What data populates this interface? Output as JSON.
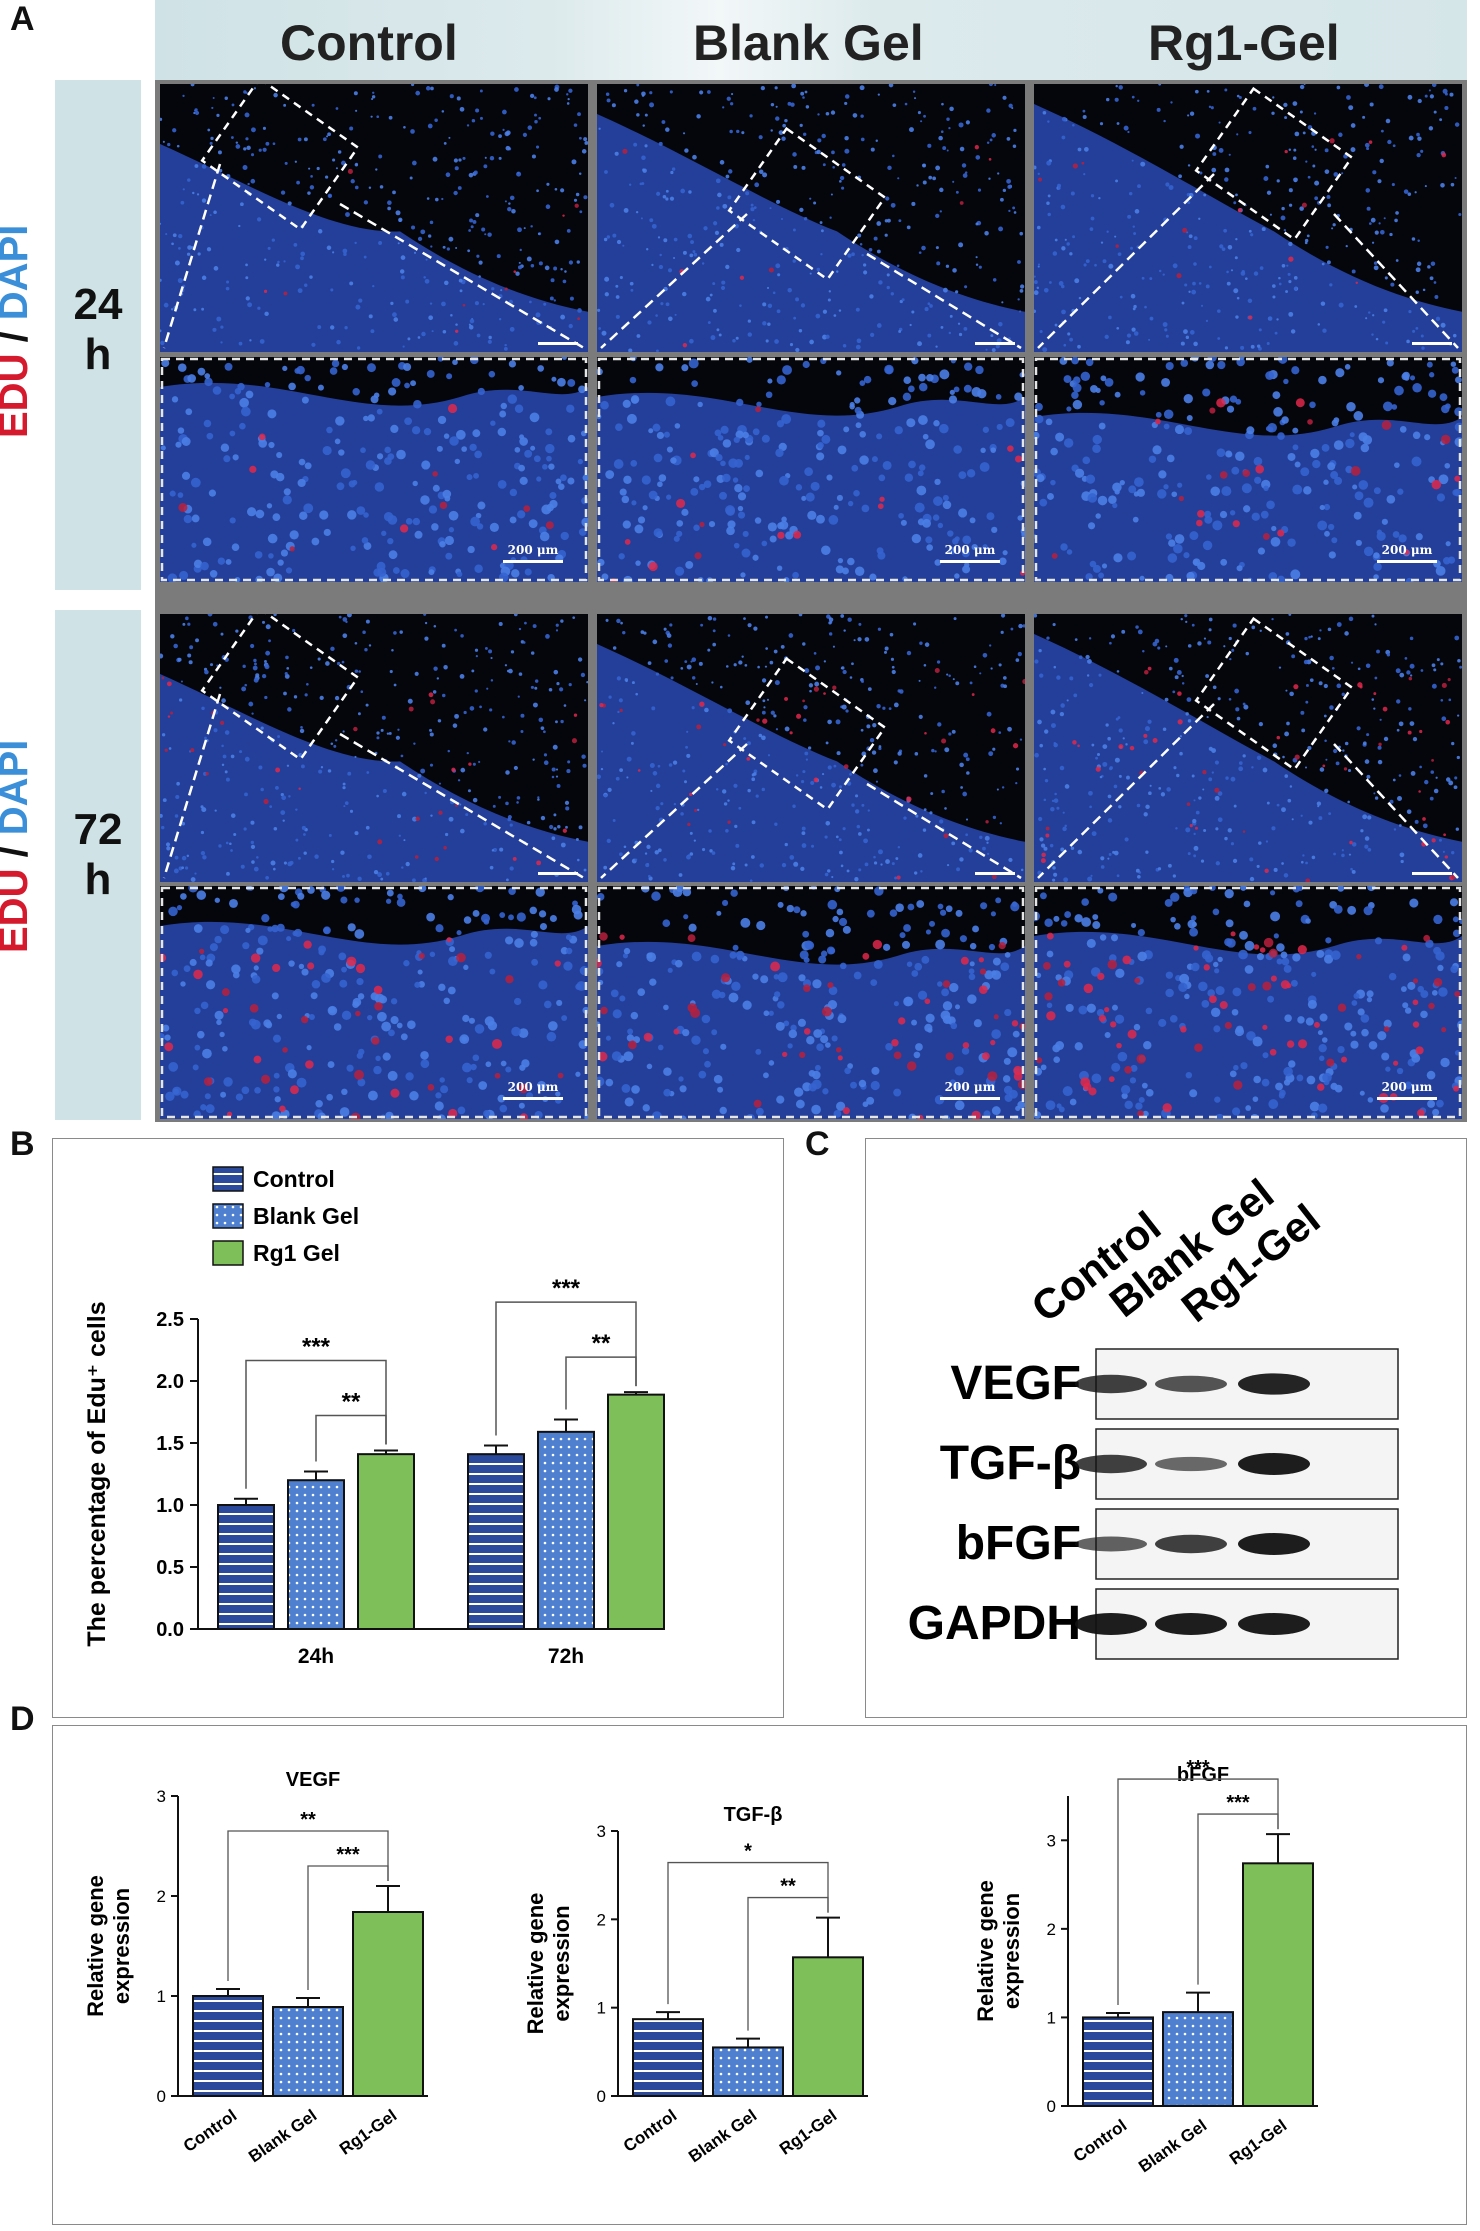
{
  "panels": {
    "a": "A",
    "b": "B",
    "c": "C",
    "d": "D"
  },
  "panel_a": {
    "columns": [
      "Control",
      "Blank Gel",
      "Rg1-Gel"
    ],
    "rows": [
      {
        "time_top": "24",
        "time_bottom": "h"
      },
      {
        "time_top": "72",
        "time_bottom": "h"
      }
    ],
    "stain": {
      "edu": "EDU",
      "slash": " / ",
      "dapi": "DAPI"
    },
    "scale_label": "200 μm",
    "colors": {
      "edu": "#d41a2c",
      "dapi": "#3a8fd8",
      "header_bg": "#cfe2e6"
    }
  },
  "panel_c": {
    "lanes": [
      "Control",
      "Blank Gel",
      "Rg1-Gel"
    ],
    "proteins": [
      "VEGF",
      "TGF-β",
      "bFGF",
      "GAPDH"
    ],
    "band_intensity": [
      [
        0.75,
        0.6,
        0.95
      ],
      [
        0.75,
        0.45,
        1.0
      ],
      [
        0.5,
        0.75,
        1.0
      ],
      [
        1.0,
        1.0,
        1.0
      ]
    ]
  },
  "chart_data": [
    {
      "type": "bar",
      "panel": "B",
      "ylabel": "The percentage of Edu⁺ cells",
      "categories": [
        "24h",
        "72h"
      ],
      "series": [
        {
          "name": "Control",
          "values": [
            1.0,
            1.41
          ],
          "errors": [
            0.05,
            0.07
          ],
          "color": "#2b4a9c",
          "pattern": "horizontal-stripes"
        },
        {
          "name": "Blank Gel",
          "values": [
            1.2,
            1.59
          ],
          "errors": [
            0.07,
            0.1
          ],
          "color": "#4f7fcf",
          "pattern": "dots"
        },
        {
          "name": "Rg1 Gel",
          "values": [
            1.41,
            1.89
          ],
          "errors": [
            0.03,
            0.02
          ],
          "color": "#7fbf5a",
          "pattern": "solid"
        }
      ],
      "ylim": [
        0,
        2.5
      ],
      "yticks": [
        "0.0",
        "0.5",
        "1.0",
        "1.5",
        "2.0",
        "2.5"
      ],
      "significance": [
        {
          "group": "24h",
          "from": "Control",
          "to": "Rg1 Gel",
          "label": "***"
        },
        {
          "group": "24h",
          "from": "Blank Gel",
          "to": "Rg1 Gel",
          "label": "**"
        },
        {
          "group": "72h",
          "from": "Control",
          "to": "Rg1 Gel",
          "label": "***"
        },
        {
          "group": "72h",
          "from": "Blank Gel",
          "to": "Rg1 Gel",
          "label": "**"
        }
      ],
      "legend": "top-left"
    },
    {
      "type": "bar",
      "panel": "D",
      "title": "VEGF",
      "ylabel": "Relative gene expression",
      "categories": [
        "Control",
        "Blank Gel",
        "Rg1-Gel"
      ],
      "values": [
        1.0,
        0.89,
        1.84
      ],
      "errors": [
        0.07,
        0.09,
        0.26
      ],
      "ylim": [
        0,
        3
      ],
      "yticks": [
        "0",
        "1",
        "2",
        "3"
      ],
      "significance": [
        {
          "from": "Control",
          "to": "Rg1-Gel",
          "label": "**"
        },
        {
          "from": "Blank Gel",
          "to": "Rg1-Gel",
          "label": "***"
        }
      ]
    },
    {
      "type": "bar",
      "panel": "D",
      "title": "TGF-β",
      "ylabel": "Relative gene expression",
      "categories": [
        "Control",
        "Blank Gel",
        "Rg1-Gel"
      ],
      "values": [
        0.87,
        0.55,
        1.57
      ],
      "errors": [
        0.08,
        0.1,
        0.45
      ],
      "ylim": [
        0,
        3
      ],
      "yticks": [
        "0",
        "1",
        "2",
        "3"
      ],
      "significance": [
        {
          "from": "Control",
          "to": "Rg1-Gel",
          "label": "*"
        },
        {
          "from": "Blank Gel",
          "to": "Rg1-Gel",
          "label": "**"
        }
      ]
    },
    {
      "type": "bar",
      "panel": "D",
      "title": "bFGF",
      "ylabel": "Relative gene expression",
      "categories": [
        "Control",
        "Blank Gel",
        "Rg1-Gel"
      ],
      "values": [
        1.0,
        1.06,
        2.74
      ],
      "errors": [
        0.05,
        0.22,
        0.33
      ],
      "ylim": [
        0,
        3.5
      ],
      "yticks": [
        "0",
        "1",
        "2",
        "3"
      ],
      "significance": [
        {
          "from": "Control",
          "to": "Rg1-Gel",
          "label": "***"
        },
        {
          "from": "Blank Gel",
          "to": "Rg1-Gel",
          "label": "***"
        }
      ]
    }
  ]
}
